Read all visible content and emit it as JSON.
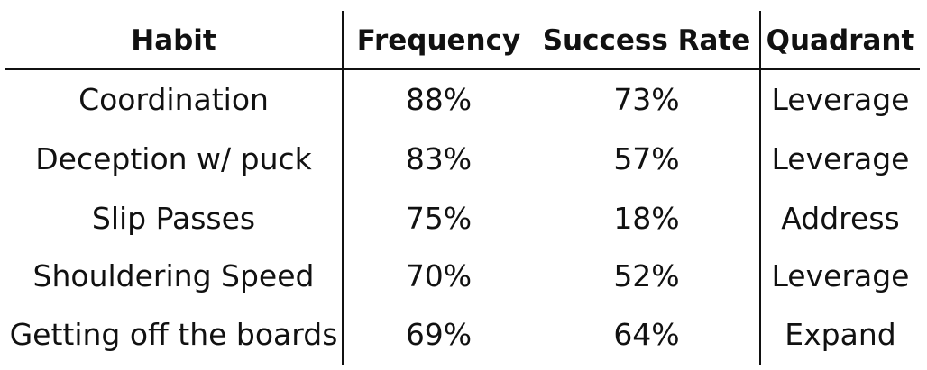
{
  "table": {
    "headers": [
      "Habit",
      "Frequency",
      "Success Rate",
      "Quadrant"
    ],
    "rows": [
      [
        "Coordination",
        "88%",
        "73%",
        "Leverage"
      ],
      [
        "Deception w/ puck",
        "83%",
        "57%",
        "Leverage"
      ],
      [
        "Slip Passes",
        "75%",
        "18%",
        "Address"
      ],
      [
        "Shouldering Speed",
        "70%",
        "52%",
        "Leverage"
      ],
      [
        "Getting off the boards",
        "69%",
        "64%",
        "Expand"
      ]
    ]
  }
}
